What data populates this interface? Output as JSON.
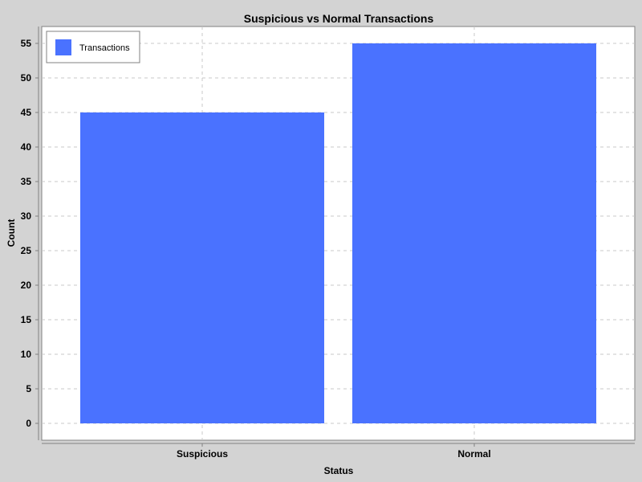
{
  "chart_data": {
    "type": "bar",
    "title": "Suspicious vs Normal Transactions",
    "xlabel": "Status",
    "ylabel": "Count",
    "categories": [
      "Suspicious",
      "Normal"
    ],
    "series": [
      {
        "name": "Transactions",
        "values": [
          45,
          55
        ]
      }
    ],
    "ylim": [
      0,
      57.5
    ],
    "yticks": [
      "0",
      "5",
      "10",
      "15",
      "20",
      "25",
      "30",
      "35",
      "40",
      "45",
      "50",
      "55"
    ],
    "grid": true,
    "legend_position": "top-left",
    "colors": {
      "bar": "#4a72ff",
      "page_background": "#d3d3d3",
      "plot_background": "#ffffff",
      "grid": "#c8c8c8",
      "axis": "#808080"
    }
  }
}
